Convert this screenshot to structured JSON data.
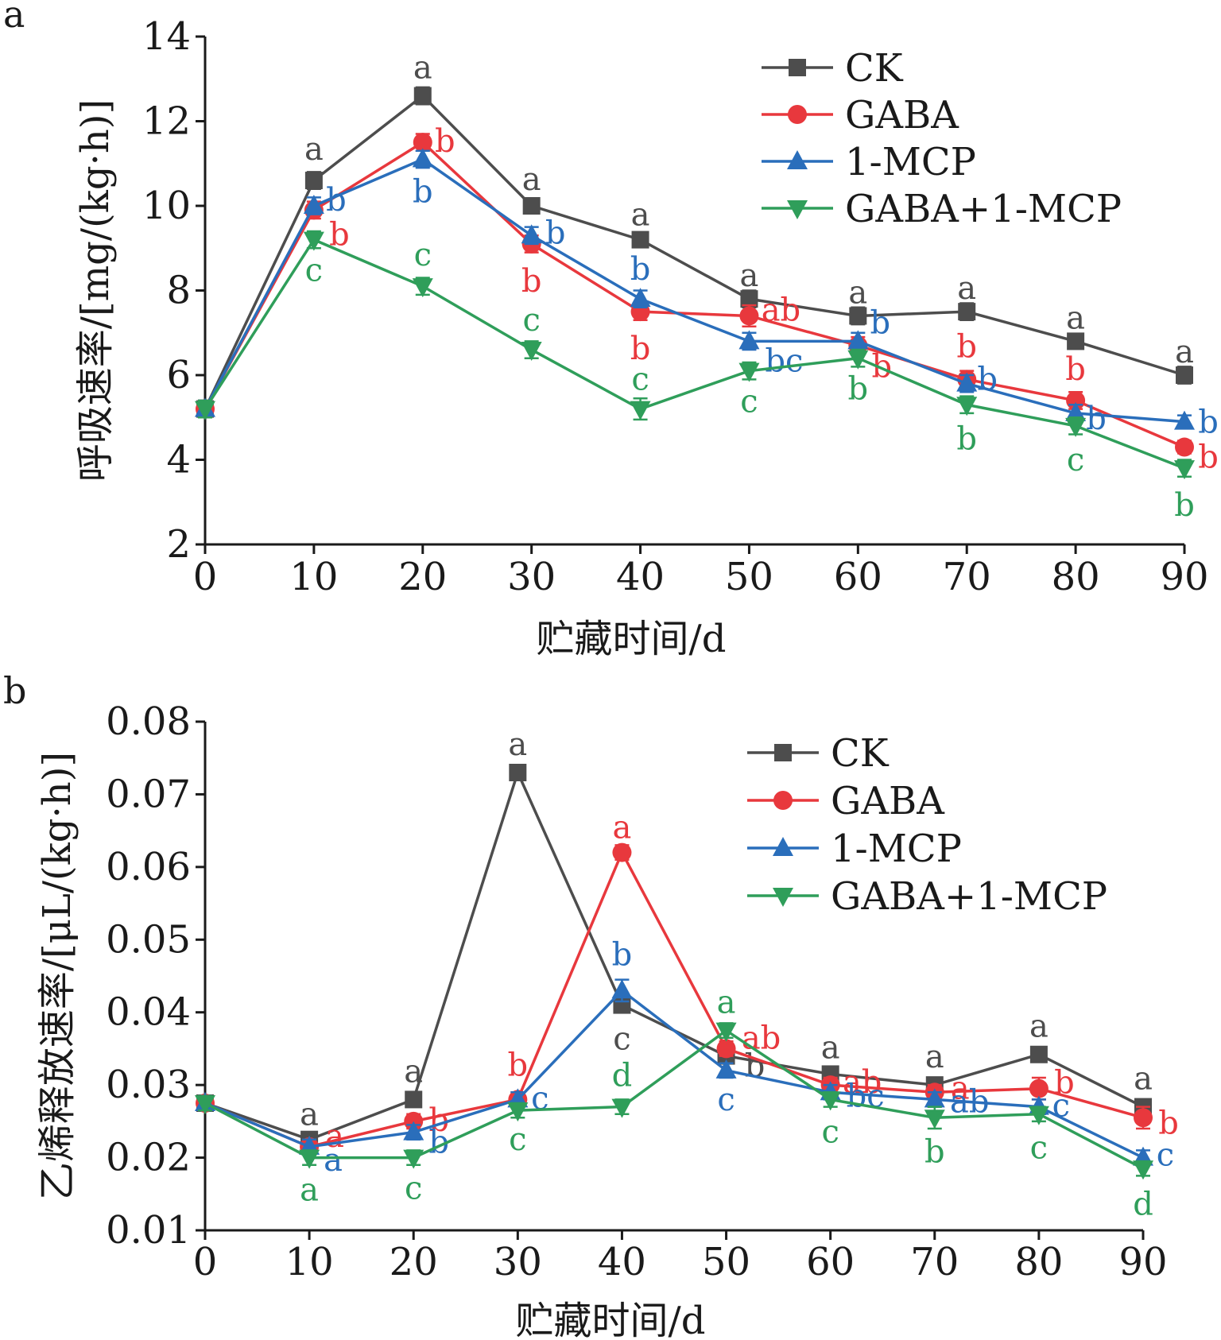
{
  "chart_data": [
    {
      "panel_label": "a",
      "type": "line",
      "xlabel": "贮藏时间/d",
      "ylabel": "呼吸速率/[mg/(kg·h)]",
      "x": [
        0,
        10,
        20,
        30,
        40,
        50,
        60,
        70,
        80,
        90
      ],
      "xticks": [
        "0",
        "10",
        "20",
        "30",
        "40",
        "50",
        "60",
        "70",
        "80",
        "90"
      ],
      "xlim": [
        0,
        90
      ],
      "ylim": [
        2,
        14
      ],
      "yticks": [
        "2",
        "4",
        "6",
        "8",
        "10",
        "12",
        "14"
      ],
      "grid": false,
      "legend_position": "top-right",
      "series": [
        {
          "name": "CK",
          "color": "#4d4d4d",
          "marker": "square",
          "values": [
            5.2,
            10.6,
            12.6,
            10.0,
            9.2,
            7.8,
            7.4,
            7.5,
            6.8,
            6.0
          ],
          "errors": [
            0.2,
            0.2,
            0.2,
            0.15,
            0.15,
            0.2,
            0.2,
            0.2,
            0.15,
            0.2
          ],
          "letters": [
            "",
            "a",
            "a",
            "a",
            "a",
            "a",
            "a",
            "a",
            "a",
            "a"
          ]
        },
        {
          "name": "GABA",
          "color": "#e8383d",
          "marker": "circle",
          "values": [
            5.2,
            9.9,
            11.5,
            9.1,
            7.5,
            7.4,
            6.7,
            5.9,
            5.4,
            4.3
          ],
          "errors": [
            0.2,
            0.2,
            0.2,
            0.2,
            0.2,
            0.25,
            0.2,
            0.2,
            0.2,
            0.15
          ],
          "letters": [
            "",
            "b",
            "b",
            "b",
            "b",
            "ab",
            "b",
            "b",
            "b",
            "b"
          ]
        },
        {
          "name": "1-MCP",
          "color": "#2a6ebb",
          "marker": "triangle-up",
          "values": [
            5.2,
            10.0,
            11.1,
            9.3,
            7.8,
            6.8,
            6.8,
            5.8,
            5.1,
            4.9
          ],
          "errors": [
            0.2,
            0.2,
            0.2,
            0.2,
            0.2,
            0.2,
            0.2,
            0.2,
            0.2,
            0.15
          ],
          "letters": [
            "",
            "b",
            "b",
            "b",
            "b",
            "bc",
            "b",
            "b",
            "b",
            "b"
          ]
        },
        {
          "name": "GABA+1-MCP",
          "color": "#2f9e5a",
          "marker": "triangle-down",
          "values": [
            5.2,
            9.2,
            8.1,
            6.6,
            5.2,
            6.1,
            6.4,
            5.3,
            4.8,
            3.8
          ],
          "errors": [
            0.2,
            0.2,
            0.2,
            0.2,
            0.25,
            0.2,
            0.2,
            0.2,
            0.2,
            0.2
          ],
          "letters": [
            "",
            "c",
            "c",
            "c",
            "c",
            "c",
            "b",
            "b",
            "c",
            "b"
          ]
        }
      ]
    },
    {
      "panel_label": "b",
      "type": "line",
      "xlabel": "贮藏时间/d",
      "ylabel": "乙烯释放速率/[μL/(kg·h)]",
      "x": [
        0,
        10,
        20,
        30,
        40,
        50,
        60,
        70,
        80,
        90
      ],
      "xticks": [
        "0",
        "10",
        "20",
        "30",
        "40",
        "50",
        "60",
        "70",
        "80",
        "90"
      ],
      "xlim": [
        0,
        90
      ],
      "ylim": [
        0.01,
        0.08
      ],
      "yticks": [
        "0.01",
        "0.02",
        "0.03",
        "0.04",
        "0.05",
        "0.06",
        "0.07",
        "0.08"
      ],
      "grid": false,
      "legend_position": "top-right",
      "series": [
        {
          "name": "CK",
          "color": "#4d4d4d",
          "marker": "square",
          "values": [
            0.0275,
            0.0225,
            0.028,
            0.073,
            0.041,
            0.034,
            0.0315,
            0.03,
            0.0342,
            0.027
          ],
          "errors": [
            0.001,
            0.001,
            0.001,
            0.001,
            0.001,
            0.001,
            0.001,
            0.001,
            0.001,
            0.001
          ],
          "letters": [
            "",
            "a",
            "a",
            "a",
            "c",
            "b",
            "a",
            "a",
            "a",
            "a"
          ]
        },
        {
          "name": "GABA",
          "color": "#e8383d",
          "marker": "circle",
          "values": [
            0.0275,
            0.0215,
            0.025,
            0.028,
            0.062,
            0.035,
            0.03,
            0.029,
            0.0295,
            0.0255
          ],
          "errors": [
            0.001,
            0.001,
            0.001,
            0.001,
            0.001,
            0.001,
            0.001,
            0.001,
            0.0015,
            0.0015
          ],
          "letters": [
            "",
            "a",
            "b",
            "b",
            "a",
            "ab",
            "ab",
            "a",
            "b",
            "b"
          ]
        },
        {
          "name": "1-MCP",
          "color": "#2a6ebb",
          "marker": "triangle-up",
          "values": [
            0.0275,
            0.0215,
            0.0235,
            0.028,
            0.043,
            0.032,
            0.029,
            0.028,
            0.027,
            0.02
          ],
          "errors": [
            0.001,
            0.001,
            0.001,
            0.001,
            0.0015,
            0.001,
            0.001,
            0.001,
            0.001,
            0.001
          ],
          "letters": [
            "",
            "a",
            "b",
            "c",
            "b",
            "c",
            "bc",
            "ab",
            "c",
            "c"
          ]
        },
        {
          "name": "GABA+1-MCP",
          "color": "#2f9e5a",
          "marker": "triangle-down",
          "values": [
            0.0275,
            0.02,
            0.02,
            0.0265,
            0.027,
            0.0375,
            0.028,
            0.0255,
            0.026,
            0.0185
          ],
          "errors": [
            0.001,
            0.001,
            0.001,
            0.001,
            0.001,
            0.001,
            0.001,
            0.0015,
            0.001,
            0.001
          ],
          "letters": [
            "",
            "a",
            "c",
            "c",
            "d",
            "a",
            "c",
            "b",
            "c",
            "d"
          ]
        }
      ]
    }
  ]
}
